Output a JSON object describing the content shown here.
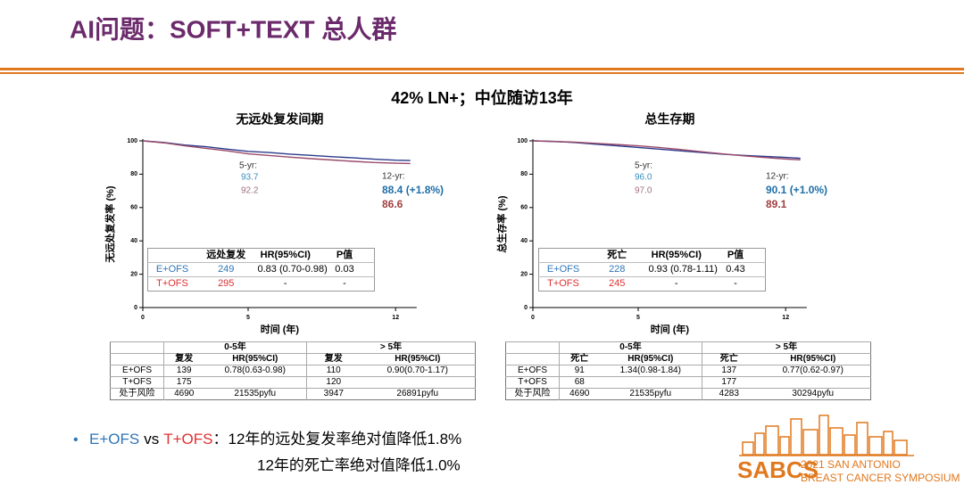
{
  "header": {
    "title": "AI问题：SOFT+TEXT 总人群",
    "subtitle": "42% LN+；中位随访13年"
  },
  "chart_data": [
    {
      "type": "line",
      "title": "无远处复发间期",
      "x_label": "时间 (年)",
      "y_label": "无远处复发率 (%)",
      "x": [
        0,
        1,
        2,
        3,
        4,
        5,
        6,
        7,
        8,
        9,
        10,
        11,
        12,
        12.7
      ],
      "xlim": [
        0,
        13
      ],
      "xticks": [
        0,
        5,
        12
      ],
      "ylim": [
        0,
        100
      ],
      "yticks": [
        0,
        20,
        40,
        60,
        80,
        100
      ],
      "series": [
        {
          "name": "E+OFS",
          "color": "#2b3a8c",
          "values": [
            100,
            99,
            97.5,
            96.5,
            95,
            93.7,
            93,
            92,
            91.3,
            90.5,
            89.8,
            89,
            88.4,
            88.2
          ]
        },
        {
          "name": "T+OFS",
          "color": "#9a4a6a",
          "values": [
            100,
            98.8,
            97,
            95.5,
            94,
            92.2,
            91.2,
            90.2,
            89.3,
            88.5,
            87.7,
            87,
            86.6,
            86.4
          ]
        }
      ],
      "annotations": [
        "5-yr:",
        "93.7",
        "92.2",
        "12-yr:",
        "88.4  (+1.8%)",
        "86.6"
      ],
      "table": {
        "columns": [
          "远处复发",
          "HR(95%CI)",
          "P值"
        ],
        "rows": [
          [
            "249",
            "0.83 (0.70-0.98)",
            "0.03"
          ],
          [
            "295",
            "-",
            "-"
          ]
        ]
      }
    },
    {
      "type": "line",
      "title": "总生存期",
      "x_label": "时间 (年)",
      "y_label": "总生存率 (%)",
      "x": [
        0,
        1,
        2,
        3,
        4,
        5,
        6,
        7,
        8,
        9,
        10,
        11,
        12,
        12.7
      ],
      "xlim": [
        0,
        13
      ],
      "xticks": [
        0,
        5,
        12
      ],
      "ylim": [
        0,
        100
      ],
      "yticks": [
        0,
        20,
        40,
        60,
        80,
        100
      ],
      "series": [
        {
          "name": "E+OFS",
          "color": "#2b3a8c",
          "values": [
            100,
            99.6,
            99,
            98,
            97,
            96,
            95,
            94,
            93,
            92,
            91.3,
            90.7,
            90.1,
            89.5
          ]
        },
        {
          "name": "T+OFS",
          "color": "#9a4a6a",
          "values": [
            100,
            99.7,
            99.2,
            98.5,
            97.8,
            97,
            96,
            94.8,
            93.5,
            92.2,
            91,
            90,
            89.1,
            88.6
          ]
        }
      ],
      "annotations": [
        "5-yr:",
        "96.0",
        "97.0",
        "12-yr:",
        "90.1  (+1.0%)",
        "89.1"
      ],
      "table": {
        "columns": [
          "死亡",
          "HR(95%CI)",
          "P值"
        ],
        "rows": [
          [
            "228",
            "0.93 (0.78-1.11)",
            "0.43"
          ],
          [
            "245",
            "-",
            "-"
          ]
        ]
      }
    }
  ],
  "summary_tables": [
    {
      "groups": [
        "0-5年",
        "> 5年"
      ],
      "columns": [
        "复发",
        "HR(95%CI)",
        "复发",
        "HR(95%CI)"
      ],
      "rows": [
        {
          "label": "E+OFS",
          "cells": [
            "139",
            "0.78(0.63-0.98)",
            "110",
            "0.90(0.70-1.17)"
          ]
        },
        {
          "label": "T+OFS",
          "cells": [
            "175",
            null,
            "120",
            null
          ]
        },
        {
          "label": "处于风险",
          "cells": [
            "4690",
            "21535pyfu",
            "3947",
            "26891pyfu"
          ]
        }
      ]
    },
    {
      "groups": [
        "0-5年",
        "> 5年"
      ],
      "columns": [
        "死亡",
        "HR(95%CI)",
        "死亡",
        "HR(95%CI)"
      ],
      "rows": [
        {
          "label": "E+OFS",
          "cells": [
            "91",
            "1.34(0.98-1.84)",
            "137",
            "0.77(0.62-0.97)"
          ]
        },
        {
          "label": "T+OFS",
          "cells": [
            "68",
            null,
            "177",
            null
          ]
        },
        {
          "label": "处于风险",
          "cells": [
            "4690",
            "21535pyfu",
            "4283",
            "30294pyfu"
          ]
        }
      ]
    }
  ],
  "bullet": {
    "parts": [
      "E+OFS",
      "vs",
      "T+OFS"
    ],
    "lines": [
      "：12年的远处复发率绝对值降低1.8%",
      "12年的死亡率绝对值降低1.0%"
    ]
  },
  "logo": {
    "name": "SABCS",
    "line1": "2021 SAN ANTONIO",
    "line2": "BREAST CANCER SYMPOSIUM"
  }
}
